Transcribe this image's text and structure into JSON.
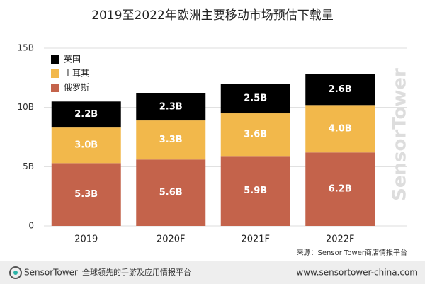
{
  "chart_data": {
    "type": "stacked_bar",
    "title": "2019至2022年欧洲主要移动市场预估下载量",
    "categories": [
      "2019",
      "2020F",
      "2021F",
      "2022F"
    ],
    "series": [
      {
        "name": "俄罗斯",
        "color": "#c4634b",
        "values": [
          5.3,
          5.6,
          5.9,
          6.2
        ],
        "value_labels": [
          "5.3B",
          "5.6B",
          "5.9B",
          "6.2B"
        ]
      },
      {
        "name": "土耳其",
        "color": "#f2b84b",
        "values": [
          3.0,
          3.3,
          3.6,
          4.0
        ],
        "value_labels": [
          "3.0B",
          "3.3B",
          "3.6B",
          "4.0B"
        ]
      },
      {
        "name": "英国",
        "color": "#000000",
        "values": [
          2.2,
          2.3,
          2.5,
          2.6
        ],
        "value_labels": [
          "2.2B",
          "2.3B",
          "2.5B",
          "2.6B"
        ]
      }
    ],
    "ylim": [
      0,
      15
    ],
    "yticks": [
      0,
      {
        "value": 5,
        "label": "5B"
      },
      {
        "value": 10,
        "label": "10B"
      },
      {
        "value": 15,
        "label": "15B"
      }
    ],
    "grid": true,
    "source": "来源：Sensor Tower商店情报平台",
    "watermark": "SensorTower"
  },
  "footer": {
    "brand": "SensorTower",
    "tagline": "全球领先的手游及应用情报平台",
    "url": "www.sensortower-china.com"
  }
}
